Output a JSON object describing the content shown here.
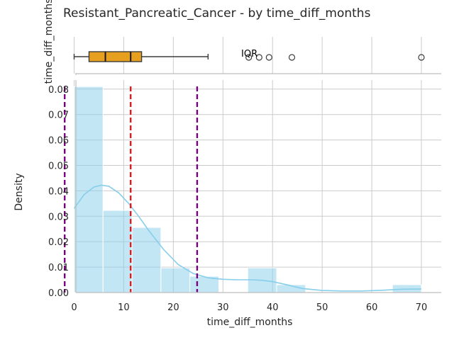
{
  "chart_data": {
    "title": "Resistant_Pancreatic_Cancer - by time_diff_months",
    "colors": {
      "bar": "#87ceeb",
      "kde": "#87ceeb",
      "box_fill": "#e69f1e",
      "mean_line": "#e41a1c",
      "range_line": "#7a0080"
    },
    "boxplot": {
      "type": "box",
      "ylabel": "time_diff_months",
      "annotation": "IQR",
      "whisker_low": 0,
      "q1": 3,
      "median": 6.3,
      "mean": 11.4,
      "q3": 13.6,
      "whisker_high": 27,
      "outliers": [
        35.2,
        37.3,
        39.3,
        43.9,
        70
      ]
    },
    "histogram": {
      "type": "bar",
      "xlabel": "time_diff_months",
      "ylabel": "Density",
      "xlim": [
        -3.5,
        74
      ],
      "ylim": [
        0,
        0.0805
      ],
      "xticks": [
        0,
        10,
        20,
        30,
        40,
        50,
        60,
        70
      ],
      "yticks": [
        0.0,
        0.01,
        0.02,
        0.03,
        0.04,
        0.05,
        0.06,
        0.07,
        0.08
      ],
      "ytick_labels": [
        "0.00",
        "0.01",
        "0.02",
        "0.03",
        "0.04",
        "0.05",
        "0.06",
        "0.07",
        "0.08"
      ],
      "bins": [
        {
          "start": 0,
          "end": 5.83,
          "density": 0.081
        },
        {
          "start": 5.83,
          "end": 11.67,
          "density": 0.0323
        },
        {
          "start": 11.67,
          "end": 17.5,
          "density": 0.0256
        },
        {
          "start": 17.5,
          "end": 23.33,
          "density": 0.0097
        },
        {
          "start": 23.33,
          "end": 29.17,
          "density": 0.0064
        },
        {
          "start": 29.17,
          "end": 35.0,
          "density": 0.0
        },
        {
          "start": 35.0,
          "end": 40.83,
          "density": 0.0097
        },
        {
          "start": 40.83,
          "end": 46.67,
          "density": 0.0031
        },
        {
          "start": 46.67,
          "end": 52.5,
          "density": 0.0
        },
        {
          "start": 52.5,
          "end": 58.33,
          "density": 0.0
        },
        {
          "start": 58.33,
          "end": 64.17,
          "density": 0.0
        },
        {
          "start": 64.17,
          "end": 70.0,
          "density": 0.0031
        }
      ],
      "kde": {
        "x": [
          0,
          2,
          4,
          5.5,
          7,
          9,
          11,
          13,
          15,
          18,
          21,
          24,
          27,
          30,
          33,
          36,
          38,
          40,
          43,
          46,
          50,
          54,
          58,
          62,
          66,
          70
        ],
        "y": [
          0.0331,
          0.0385,
          0.0415,
          0.0422,
          0.0418,
          0.0392,
          0.035,
          0.03,
          0.0245,
          0.017,
          0.011,
          0.0075,
          0.0058,
          0.0052,
          0.005,
          0.005,
          0.0048,
          0.0043,
          0.003,
          0.0016,
          0.0008,
          0.0006,
          0.0006,
          0.0009,
          0.0013,
          0.0014
        ]
      },
      "mean_line": 11.4,
      "range_lines": [
        -1.9,
        24.8
      ]
    }
  }
}
